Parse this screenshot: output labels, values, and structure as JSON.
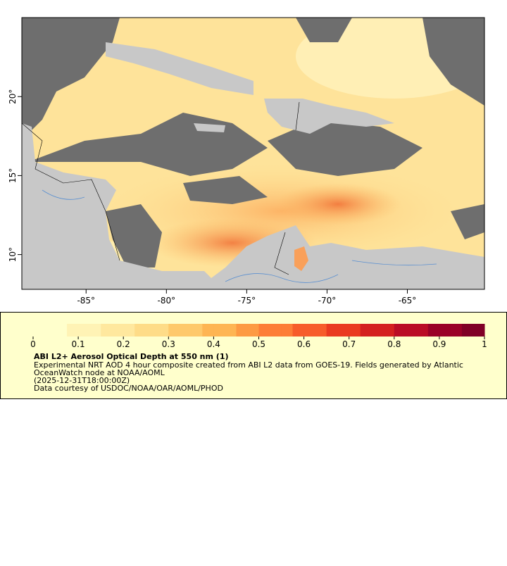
{
  "map": {
    "xlim": [
      -89,
      -60.2
    ],
    "ylim": [
      7.8,
      25
    ],
    "xticks": [
      {
        "value": -85,
        "label": "-85°"
      },
      {
        "value": -80,
        "label": "-80°"
      },
      {
        "value": -75,
        "label": "-75°"
      },
      {
        "value": -70,
        "label": "-70°"
      },
      {
        "value": -65,
        "label": "-65°"
      }
    ],
    "yticks": [
      {
        "value": 10,
        "label": "10°"
      },
      {
        "value": 15,
        "label": "15°"
      },
      {
        "value": 20,
        "label": "20°"
      }
    ]
  },
  "colorbar": {
    "lim": [
      0,
      1
    ],
    "ticks": [
      0,
      0.1,
      0.2,
      0.3,
      0.4,
      0.5,
      0.6,
      0.7,
      0.8,
      0.9,
      1
    ],
    "colors": [
      "#ffffcc",
      "#fff3b5",
      "#ffe89e",
      "#fedc88",
      "#fec96b",
      "#feb553",
      "#fd9a43",
      "#fd7d37",
      "#f75c2b",
      "#ea3a21",
      "#d4201f",
      "#ba0c25",
      "#9a0127",
      "#800026"
    ]
  },
  "legend": {
    "title": "ABI L2+ Aerosol Optical Depth at 550 nm (1)",
    "lines": [
      "Experimental NRT AOD 4 hour composite created from ABI L2 data from GOES-19. Fields generated by Atlantic",
      "OceanWatch node at NOAA/AOML",
      "(2025-12-31T18:00:00Z)",
      "Data courtesy of USDOC/NOAA/OAR/AOML/PHOD"
    ]
  }
}
